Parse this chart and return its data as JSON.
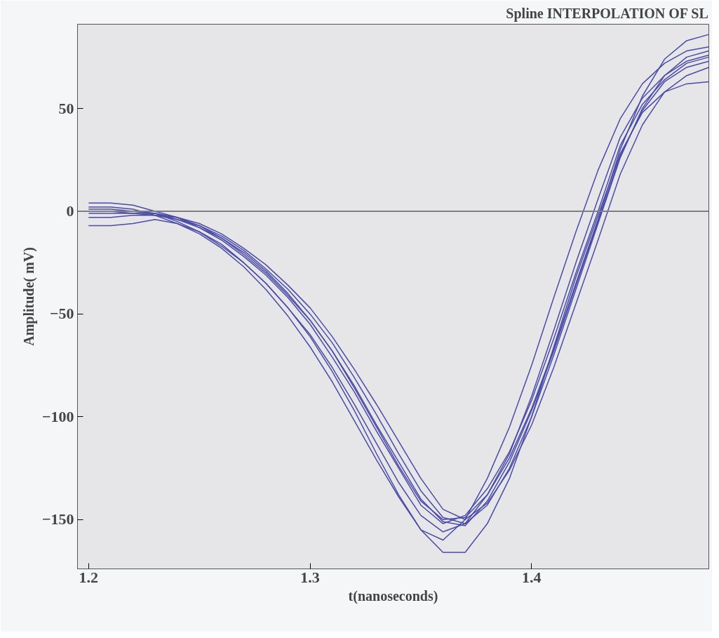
{
  "chart_data": {
    "type": "line",
    "title": "Spline INTERPOLATION OF SL",
    "xlabel": "t(nanoseconds)",
    "ylabel": "Amplitude( mV)",
    "x": [
      1.2,
      1.21,
      1.22,
      1.23,
      1.24,
      1.25,
      1.26,
      1.27,
      1.28,
      1.29,
      1.3,
      1.31,
      1.32,
      1.33,
      1.34,
      1.35,
      1.36,
      1.37,
      1.38,
      1.39,
      1.4,
      1.41,
      1.42,
      1.43,
      1.44,
      1.45,
      1.46,
      1.47,
      1.48
    ],
    "series": [
      {
        "color": "#4b4ba8",
        "values": [
          0,
          0,
          0,
          -1,
          -4,
          -8,
          -14,
          -22,
          -31,
          -42,
          -55,
          -71,
          -88,
          -107,
          -125,
          -143,
          -152,
          -148,
          -135,
          -117,
          -92,
          -62,
          -30,
          0,
          32,
          52,
          64,
          72,
          75
        ]
      },
      {
        "color": "#4b4ba8",
        "values": [
          2,
          2,
          1,
          -2,
          -6,
          -11,
          -18,
          -27,
          -38,
          -51,
          -66,
          -83,
          -102,
          -121,
          -139,
          -155,
          -160,
          -150,
          -130,
          -105,
          -75,
          -42,
          -10,
          20,
          45,
          62,
          72,
          78,
          80
        ]
      },
      {
        "color": "#4b4ba8",
        "values": [
          -3,
          -3,
          -2,
          -2,
          -3,
          -6,
          -11,
          -18,
          -26,
          -36,
          -47,
          -61,
          -77,
          -94,
          -112,
          -130,
          -145,
          -150,
          -142,
          -126,
          -104,
          -76,
          -45,
          -14,
          18,
          42,
          58,
          66,
          70
        ]
      },
      {
        "color": "#4b4ba8",
        "values": [
          -7,
          -7,
          -6,
          -4,
          -6,
          -10,
          -16,
          -25,
          -35,
          -47,
          -61,
          -78,
          -97,
          -118,
          -138,
          -155,
          -166,
          -166,
          -152,
          -130,
          -100,
          -66,
          -32,
          -2,
          28,
          48,
          58,
          62,
          63
        ]
      },
      {
        "color": "#4b4ba8",
        "values": [
          4,
          4,
          3,
          0,
          -3,
          -7,
          -13,
          -20,
          -29,
          -40,
          -53,
          -68,
          -86,
          -105,
          -124,
          -141,
          -150,
          -149,
          -138,
          -120,
          -96,
          -67,
          -35,
          -4,
          30,
          56,
          74,
          83,
          86
        ]
      },
      {
        "color": "#4b4ba8",
        "values": [
          1,
          1,
          0,
          -1,
          -5,
          -10,
          -17,
          -25,
          -35,
          -47,
          -60,
          -76,
          -94,
          -113,
          -132,
          -148,
          -156,
          -152,
          -138,
          -118,
          -90,
          -58,
          -25,
          6,
          36,
          55,
          66,
          73,
          76
        ]
      },
      {
        "color": "#4b4ba8",
        "values": [
          -1,
          -1,
          -1,
          -2,
          -4,
          -7,
          -12,
          -19,
          -28,
          -38,
          -50,
          -64,
          -81,
          -99,
          -118,
          -136,
          -149,
          -152,
          -143,
          -125,
          -100,
          -70,
          -38,
          -6,
          26,
          50,
          66,
          75,
          78
        ]
      },
      {
        "color": "#4b4ba8",
        "values": [
          0,
          0,
          -1,
          -1,
          -3,
          -8,
          -13,
          -21,
          -30,
          -41,
          -53,
          -68,
          -85,
          -104,
          -122,
          -140,
          -151,
          -153,
          -141,
          -122,
          -97,
          -68,
          -36,
          -5,
          27,
          49,
          63,
          70,
          73
        ]
      }
    ],
    "xlim": [
      1.195,
      1.48
    ],
    "ylim": [
      -174,
      91
    ],
    "xticks": [
      1.2,
      1.3,
      1.4
    ],
    "yticks": [
      50,
      0,
      {
        "value": -50,
        "label": "−50"
      },
      {
        "value": -100,
        "label": "−100"
      },
      {
        "value": -150,
        "label": "−150"
      }
    ],
    "ref_lines": [
      {
        "axis": "y",
        "value": 0,
        "label": null,
        "color": "#808080"
      }
    ],
    "grid": false,
    "marker": "none",
    "line_style": "solid"
  }
}
